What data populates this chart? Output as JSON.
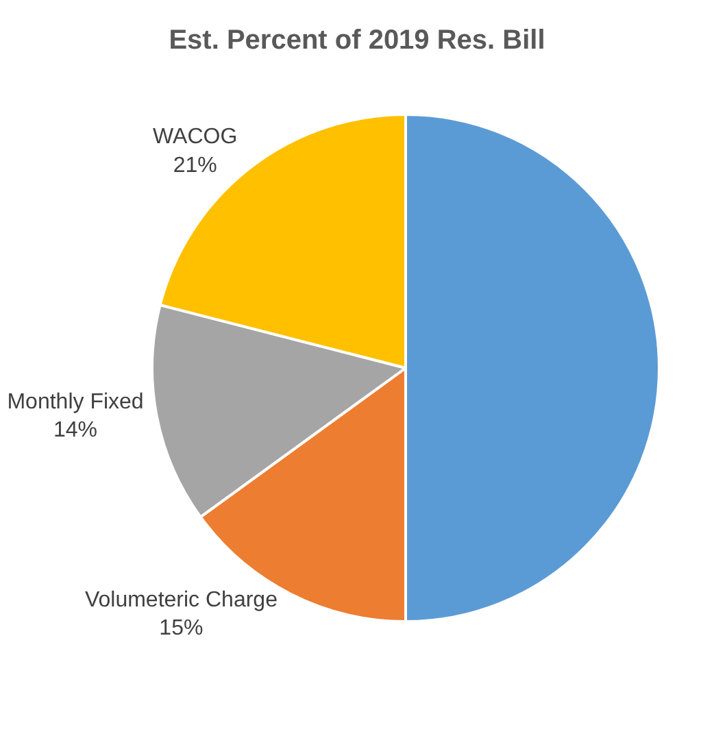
{
  "chart_data": {
    "type": "pie",
    "title": "Est. Percent of 2019 Res. Bill",
    "categories": [
      null,
      "Volumeteric Charge",
      "Monthly Fixed",
      "WACOG"
    ],
    "values": [
      50,
      15,
      14,
      21
    ],
    "value_labels": [
      null,
      "15%",
      "14%",
      "21%"
    ],
    "colors": [
      "#5b9bd5",
      "#ed7d31",
      "#a5a5a5",
      "#ffc000"
    ],
    "legend": false
  }
}
